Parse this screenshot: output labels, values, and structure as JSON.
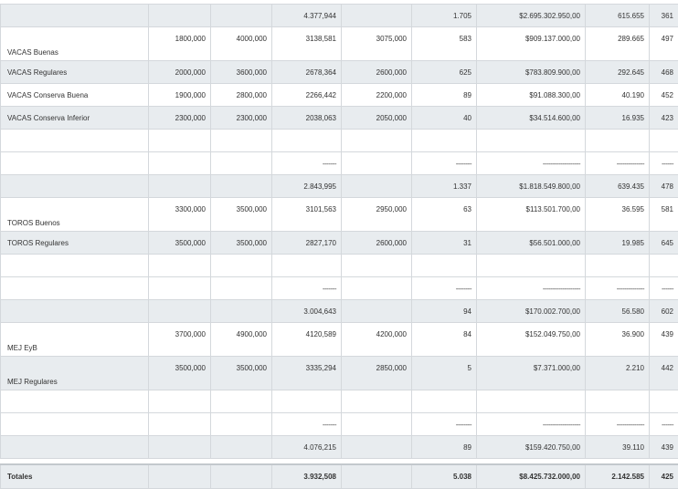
{
  "rows": [
    {
      "style": "shaded",
      "h": 25,
      "cells": [
        "",
        "",
        "",
        "4.377,944",
        "",
        "1.705",
        "$2.695.302.950,00",
        "615.655",
        "361"
      ]
    },
    {
      "style": "white dual",
      "h": 37,
      "cells": [
        "VACAS Buenas",
        "1800,000",
        "4000,000",
        "3138,581",
        "3075,000",
        "583",
        "$909.137.000,00",
        "289.665",
        "497"
      ]
    },
    {
      "style": "shaded",
      "h": 25,
      "cells": [
        "VACAS Regulares",
        "2000,000",
        "3600,000",
        "2678,364",
        "2600,000",
        "625",
        "$783.809.900,00",
        "292.645",
        "468"
      ]
    },
    {
      "style": "white",
      "h": 25,
      "cells": [
        "VACAS Conserva Buena",
        "1900,000",
        "2800,000",
        "2266,442",
        "2200,000",
        "89",
        "$91.088.300,00",
        "40.190",
        "452"
      ]
    },
    {
      "style": "shaded",
      "h": 25,
      "cells": [
        "VACAS Conserva Inferior",
        "2300,000",
        "2300,000",
        "2038,063",
        "2050,000",
        "40",
        "$34.514.600,00",
        "16.935",
        "423"
      ]
    },
    {
      "style": "white",
      "h": 25,
      "cells": [
        "",
        "",
        "",
        "",
        "",
        "",
        "",
        "",
        ""
      ]
    },
    {
      "style": "white",
      "h": 25,
      "cells": [
        "",
        "",
        "",
        "-------",
        "",
        "--------",
        "-------------------",
        "--------------",
        "------"
      ]
    },
    {
      "style": "shaded",
      "h": 25,
      "cells": [
        "",
        "",
        "",
        "2.843,995",
        "",
        "1.337",
        "$1.818.549.800,00",
        "639.435",
        "478"
      ]
    },
    {
      "style": "white dual",
      "h": 37,
      "cells": [
        "TOROS Buenos",
        "3300,000",
        "3500,000",
        "3101,563",
        "2950,000",
        "63",
        "$113.501.700,00",
        "36.595",
        "581"
      ]
    },
    {
      "style": "shaded",
      "h": 25,
      "cells": [
        "TOROS Regulares",
        "3500,000",
        "3500,000",
        "2827,170",
        "2600,000",
        "31",
        "$56.501.000,00",
        "19.985",
        "645"
      ]
    },
    {
      "style": "white",
      "h": 25,
      "cells": [
        "",
        "",
        "",
        "",
        "",
        "",
        "",
        "",
        ""
      ]
    },
    {
      "style": "white",
      "h": 25,
      "cells": [
        "",
        "",
        "",
        "-------",
        "",
        "--------",
        "-------------------",
        "--------------",
        "------"
      ]
    },
    {
      "style": "shaded",
      "h": 25,
      "cells": [
        "",
        "",
        "",
        "3.004,643",
        "",
        "94",
        "$170.002.700,00",
        "56.580",
        "602"
      ]
    },
    {
      "style": "white dual",
      "h": 37,
      "cells": [
        "MEJ EyB",
        "3700,000",
        "4900,000",
        "4120,589",
        "4200,000",
        "84",
        "$152.049.750,00",
        "36.900",
        "439"
      ]
    },
    {
      "style": "shaded dual",
      "h": 37,
      "cells": [
        "MEJ Regulares",
        "3500,000",
        "3500,000",
        "3335,294",
        "2850,000",
        "5",
        "$7.371.000,00",
        "2.210",
        "442"
      ]
    },
    {
      "style": "white",
      "h": 25,
      "cells": [
        "",
        "",
        "",
        "",
        "",
        "",
        "",
        "",
        ""
      ]
    },
    {
      "style": "white",
      "h": 25,
      "cells": [
        "",
        "",
        "",
        "-------",
        "",
        "--------",
        "-------------------",
        "--------------",
        "------"
      ]
    },
    {
      "style": "shaded",
      "h": 25,
      "cells": [
        "",
        "",
        "",
        "4.076,215",
        "",
        "89",
        "$159.420.750,00",
        "39.110",
        "439"
      ]
    }
  ],
  "totals": {
    "label": "Totales",
    "cells": [
      "",
      "",
      "3.932,508",
      "",
      "5.038",
      "$8.425.732.000,00",
      "2.142.585",
      "425"
    ]
  }
}
